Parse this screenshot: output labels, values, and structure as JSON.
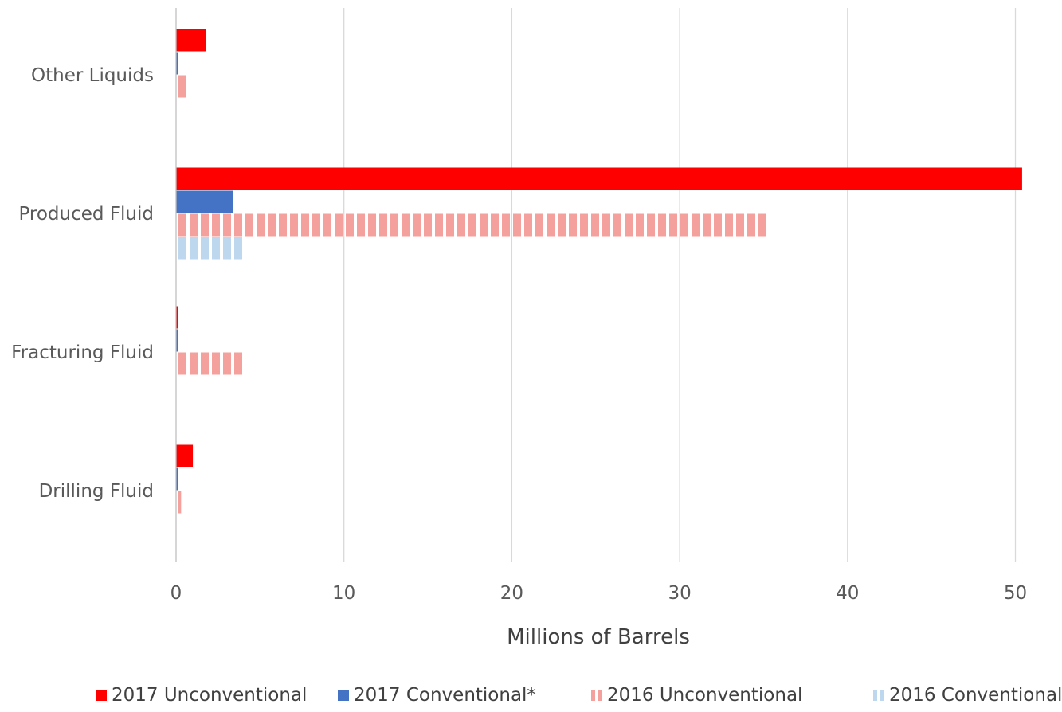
{
  "chart_data": {
    "type": "bar",
    "orientation": "horizontal",
    "categories": [
      "Other Liquids",
      "Produced Fluid",
      "Fracturing Fluid",
      "Drilling Fluid"
    ],
    "series": [
      {
        "name": "2017 Unconventional",
        "values": [
          1.8,
          50.4,
          0.1,
          1.0
        ],
        "color": "#ff0000",
        "pattern": "solid"
      },
      {
        "name": "2017 Conventional*",
        "values": [
          0.1,
          3.4,
          0.1,
          0.1
        ],
        "color": "#4472c4",
        "pattern": "solid"
      },
      {
        "name": "2016 Unconventional",
        "values": [
          0.7,
          35.4,
          4.0,
          0.3
        ],
        "color": "#f4a09c",
        "pattern": "vertical-stripes"
      },
      {
        "name": "2016 Conventional",
        "values": [
          0.1,
          4.0,
          0.1,
          0.1
        ],
        "color": "#bdd7ee",
        "pattern": "vertical-stripes"
      }
    ],
    "xlabel": "Millions of Barrels",
    "ylabel": "",
    "title": "",
    "xlim": [
      0,
      50
    ],
    "xticks": [
      0,
      10,
      20,
      30,
      40,
      50
    ],
    "grid": "vertical",
    "legend": "bottom"
  }
}
